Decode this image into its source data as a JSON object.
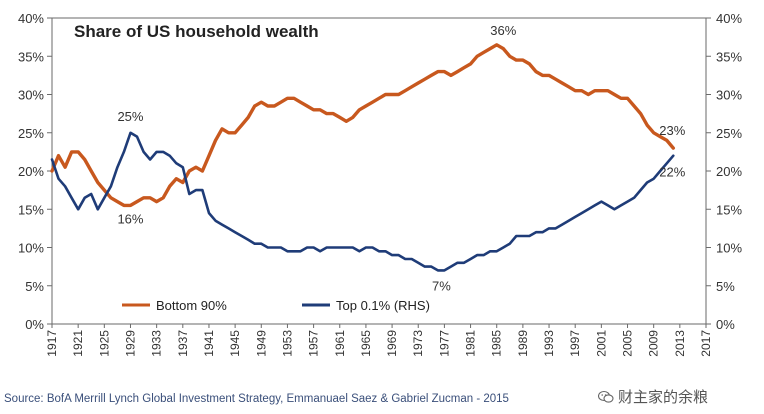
{
  "chart_data": {
    "type": "line",
    "title": "Share of US household wealth",
    "x_ticks": [
      "1917",
      "1921",
      "1925",
      "1929",
      "1933",
      "1937",
      "1941",
      "1945",
      "1949",
      "1953",
      "1957",
      "1961",
      "1965",
      "1969",
      "1973",
      "1977",
      "1981",
      "1985",
      "1989",
      "1993",
      "1997",
      "2001",
      "2005",
      "2009",
      "2013",
      "2017"
    ],
    "xlim": [
      1917,
      2017
    ],
    "ylim": [
      0,
      40
    ],
    "y_ticks": [
      "0%",
      "5%",
      "10%",
      "15%",
      "20%",
      "25%",
      "30%",
      "35%",
      "40%"
    ],
    "y2_ticks": [
      "0%",
      "5%",
      "10%",
      "15%",
      "20%",
      "25%",
      "30%",
      "35%",
      "40%"
    ],
    "series": [
      {
        "name": "Bottom 90%",
        "axis": "left",
        "color": "#c8581e",
        "x": [
          1917,
          1918,
          1919,
          1920,
          1921,
          1922,
          1923,
          1924,
          1925,
          1926,
          1927,
          1928,
          1929,
          1930,
          1931,
          1932,
          1933,
          1934,
          1935,
          1936,
          1937,
          1938,
          1939,
          1940,
          1941,
          1942,
          1943,
          1944,
          1945,
          1946,
          1947,
          1948,
          1949,
          1950,
          1951,
          1952,
          1953,
          1954,
          1955,
          1956,
          1957,
          1958,
          1959,
          1960,
          1961,
          1962,
          1963,
          1964,
          1965,
          1966,
          1967,
          1968,
          1969,
          1970,
          1971,
          1972,
          1973,
          1974,
          1975,
          1976,
          1977,
          1978,
          1979,
          1980,
          1981,
          1982,
          1983,
          1984,
          1985,
          1986,
          1987,
          1988,
          1989,
          1990,
          1991,
          1992,
          1993,
          1994,
          1995,
          1996,
          1997,
          1998,
          1999,
          2000,
          2001,
          2002,
          2003,
          2004,
          2005,
          2006,
          2007,
          2008,
          2009,
          2010,
          2011,
          2012
        ],
        "values": [
          20.0,
          22.0,
          20.5,
          22.5,
          22.5,
          21.5,
          20.0,
          18.5,
          17.5,
          16.5,
          16.0,
          15.5,
          15.5,
          16.0,
          16.5,
          16.5,
          16.0,
          16.5,
          18.0,
          19.0,
          18.5,
          20.0,
          20.5,
          20.0,
          22.0,
          24.0,
          25.5,
          25.0,
          25.0,
          26.0,
          27.0,
          28.5,
          29.0,
          28.5,
          28.5,
          29.0,
          29.5,
          29.5,
          29.0,
          28.5,
          28.0,
          28.0,
          27.5,
          27.5,
          27.0,
          26.5,
          27.0,
          28.0,
          28.5,
          29.0,
          29.5,
          30.0,
          30.0,
          30.0,
          30.5,
          31.0,
          31.5,
          32.0,
          32.5,
          33.0,
          33.0,
          32.5,
          33.0,
          33.5,
          34.0,
          35.0,
          35.5,
          36.0,
          36.5,
          36.0,
          35.0,
          34.5,
          34.5,
          34.0,
          33.0,
          32.5,
          32.5,
          32.0,
          31.5,
          31.0,
          30.5,
          30.5,
          30.0,
          30.5,
          30.5,
          30.5,
          30.0,
          29.5,
          29.5,
          28.5,
          27.5,
          26.0,
          25.0,
          24.5,
          24.0,
          23.0
        ]
      },
      {
        "name": "Top 0.1% (RHS)",
        "axis": "right",
        "color": "#1f3c78",
        "x": [
          1917,
          1918,
          1919,
          1920,
          1921,
          1922,
          1923,
          1924,
          1925,
          1926,
          1927,
          1928,
          1929,
          1930,
          1931,
          1932,
          1933,
          1934,
          1935,
          1936,
          1937,
          1938,
          1939,
          1940,
          1941,
          1942,
          1943,
          1944,
          1945,
          1946,
          1947,
          1948,
          1949,
          1950,
          1951,
          1952,
          1953,
          1954,
          1955,
          1956,
          1957,
          1958,
          1959,
          1960,
          1961,
          1962,
          1963,
          1964,
          1965,
          1966,
          1967,
          1968,
          1969,
          1970,
          1971,
          1972,
          1973,
          1974,
          1975,
          1976,
          1977,
          1978,
          1979,
          1980,
          1981,
          1982,
          1983,
          1984,
          1985,
          1986,
          1987,
          1988,
          1989,
          1990,
          1991,
          1992,
          1993,
          1994,
          1995,
          1996,
          1997,
          1998,
          1999,
          2000,
          2001,
          2002,
          2003,
          2004,
          2005,
          2006,
          2007,
          2008,
          2009,
          2010,
          2011,
          2012
        ],
        "values": [
          21.5,
          19.0,
          18.0,
          16.5,
          15.0,
          16.5,
          17.0,
          15.0,
          16.5,
          18.0,
          20.5,
          22.5,
          25.0,
          24.5,
          22.5,
          21.5,
          22.5,
          22.5,
          22.0,
          21.0,
          20.5,
          17.0,
          17.5,
          17.5,
          14.5,
          13.5,
          13.0,
          12.5,
          12.0,
          11.5,
          11.0,
          10.5,
          10.5,
          10.0,
          10.0,
          10.0,
          9.5,
          9.5,
          9.5,
          10.0,
          10.0,
          9.5,
          10.0,
          10.0,
          10.0,
          10.0,
          10.0,
          9.5,
          10.0,
          10.0,
          9.5,
          9.5,
          9.0,
          9.0,
          8.5,
          8.5,
          8.0,
          7.5,
          7.5,
          7.0,
          7.0,
          7.5,
          8.0,
          8.0,
          8.5,
          9.0,
          9.0,
          9.5,
          9.5,
          10.0,
          10.5,
          11.5,
          11.5,
          11.5,
          12.0,
          12.0,
          12.5,
          12.5,
          13.0,
          13.5,
          14.0,
          14.5,
          15.0,
          15.5,
          16.0,
          15.5,
          15.0,
          15.5,
          16.0,
          16.5,
          17.5,
          18.5,
          19.0,
          20.0,
          21.0,
          22.0
        ]
      }
    ],
    "annotations": [
      {
        "text": "25%",
        "x": 1929,
        "y": 25
      },
      {
        "text": "16%",
        "x": 1929,
        "y": 15.5
      },
      {
        "text": "36%",
        "x": 1986,
        "y": 36.5
      },
      {
        "text": "7%",
        "x": 1977,
        "y": 7
      },
      {
        "text": "23%",
        "x": 2012,
        "y": 23
      },
      {
        "text": "22%",
        "x": 2012,
        "y": 22
      }
    ],
    "legend": [
      {
        "label": "Bottom 90%",
        "color": "#c8581e"
      },
      {
        "label": "Top 0.1% (RHS)",
        "color": "#1f3c78"
      }
    ],
    "legend_position": "bottom-left",
    "grid": false
  },
  "source": "Source: BofA Merrill Lynch Global Investment Strategy, Emmanuael Saez & Gabriel Zucman - 2015",
  "watermark": "财主家的余粮",
  "watermark_icon": "wechat-icon"
}
